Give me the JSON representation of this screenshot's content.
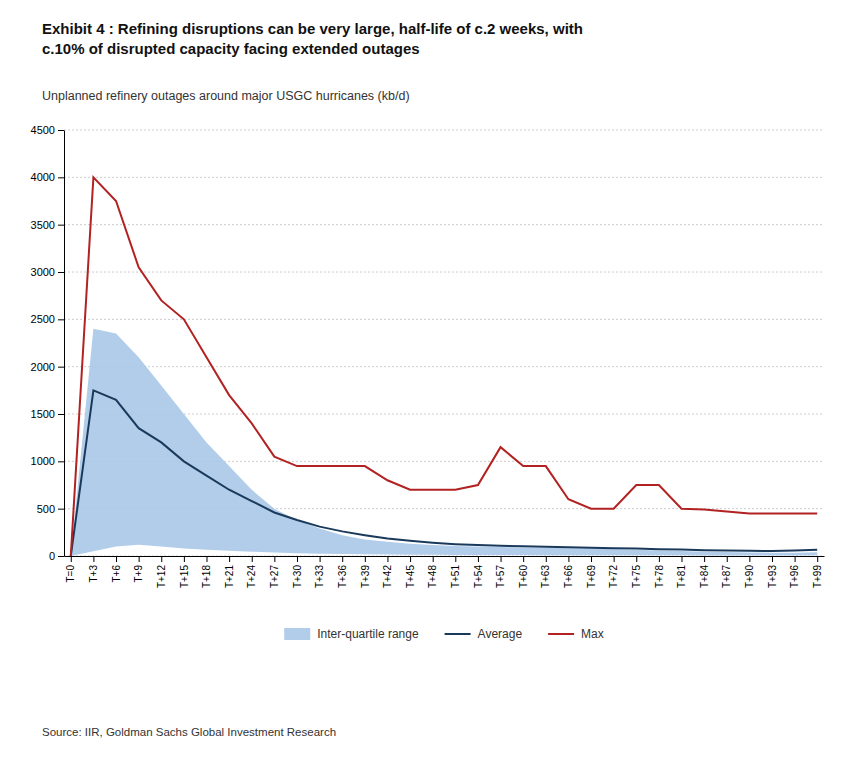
{
  "chart_data": {
    "type": "line",
    "title": "Exhibit 4 : Refining disruptions can be very large, half-life of c.2 weeks, with\nc.10% of disrupted capacity facing extended outages",
    "subtitle": "Unplanned refinery outages around major USGC hurricanes (kb/d)",
    "source": "Source: IIR, Goldman Sachs Global Investment Research",
    "categories": [
      "T=0",
      "T+3",
      "T+6",
      "T+9",
      "T+12",
      "T+15",
      "T+18",
      "T+21",
      "T+24",
      "T+27",
      "T+30",
      "T+33",
      "T+36",
      "T+39",
      "T+42",
      "T+45",
      "T+48",
      "T+51",
      "T+54",
      "T+57",
      "T+60",
      "T+63",
      "T+66",
      "T+69",
      "T+72",
      "T+75",
      "T+78",
      "T+81",
      "T+84",
      "T+87",
      "T+90",
      "T+93",
      "T+96",
      "T+99"
    ],
    "series": [
      {
        "name": "Inter-quartile range",
        "type": "area",
        "color": "#a8c8e8",
        "lower": [
          0,
          50,
          100,
          120,
          100,
          80,
          65,
          55,
          45,
          38,
          30,
          25,
          20,
          18,
          15,
          13,
          12,
          11,
          10,
          10,
          10,
          9,
          9,
          8,
          8,
          8,
          7,
          7,
          6,
          6,
          6,
          6,
          6,
          7
        ],
        "upper": [
          0,
          2400,
          2350,
          2100,
          1800,
          1500,
          1200,
          950,
          700,
          500,
          380,
          290,
          220,
          175,
          150,
          130,
          115,
          105,
          100,
          95,
          90,
          88,
          82,
          78,
          72,
          65,
          58,
          52,
          46,
          42,
          38,
          35,
          35,
          40
        ]
      },
      {
        "name": "Average",
        "type": "line",
        "color": "#1a3a5c",
        "values": [
          0,
          1750,
          1650,
          1350,
          1200,
          1000,
          850,
          700,
          580,
          460,
          380,
          310,
          260,
          220,
          185,
          160,
          140,
          125,
          115,
          108,
          102,
          98,
          92,
          88,
          82,
          78,
          72,
          68,
          62,
          58,
          55,
          52,
          58,
          65
        ]
      },
      {
        "name": "Max",
        "type": "line",
        "color": "#b22222",
        "values": [
          0,
          4000,
          3750,
          3050,
          2700,
          2500,
          2100,
          1700,
          1400,
          1050,
          950,
          950,
          950,
          950,
          800,
          700,
          700,
          700,
          750,
          1150,
          950,
          950,
          600,
          500,
          500,
          750,
          750,
          500,
          490,
          470,
          450,
          450,
          450,
          450
        ]
      }
    ],
    "ylim": [
      0,
      4500
    ],
    "yticks": [
      0,
      500,
      1000,
      1500,
      2000,
      2500,
      3000,
      3500,
      4000,
      4500
    ],
    "grid": true,
    "legend": "bottom"
  }
}
